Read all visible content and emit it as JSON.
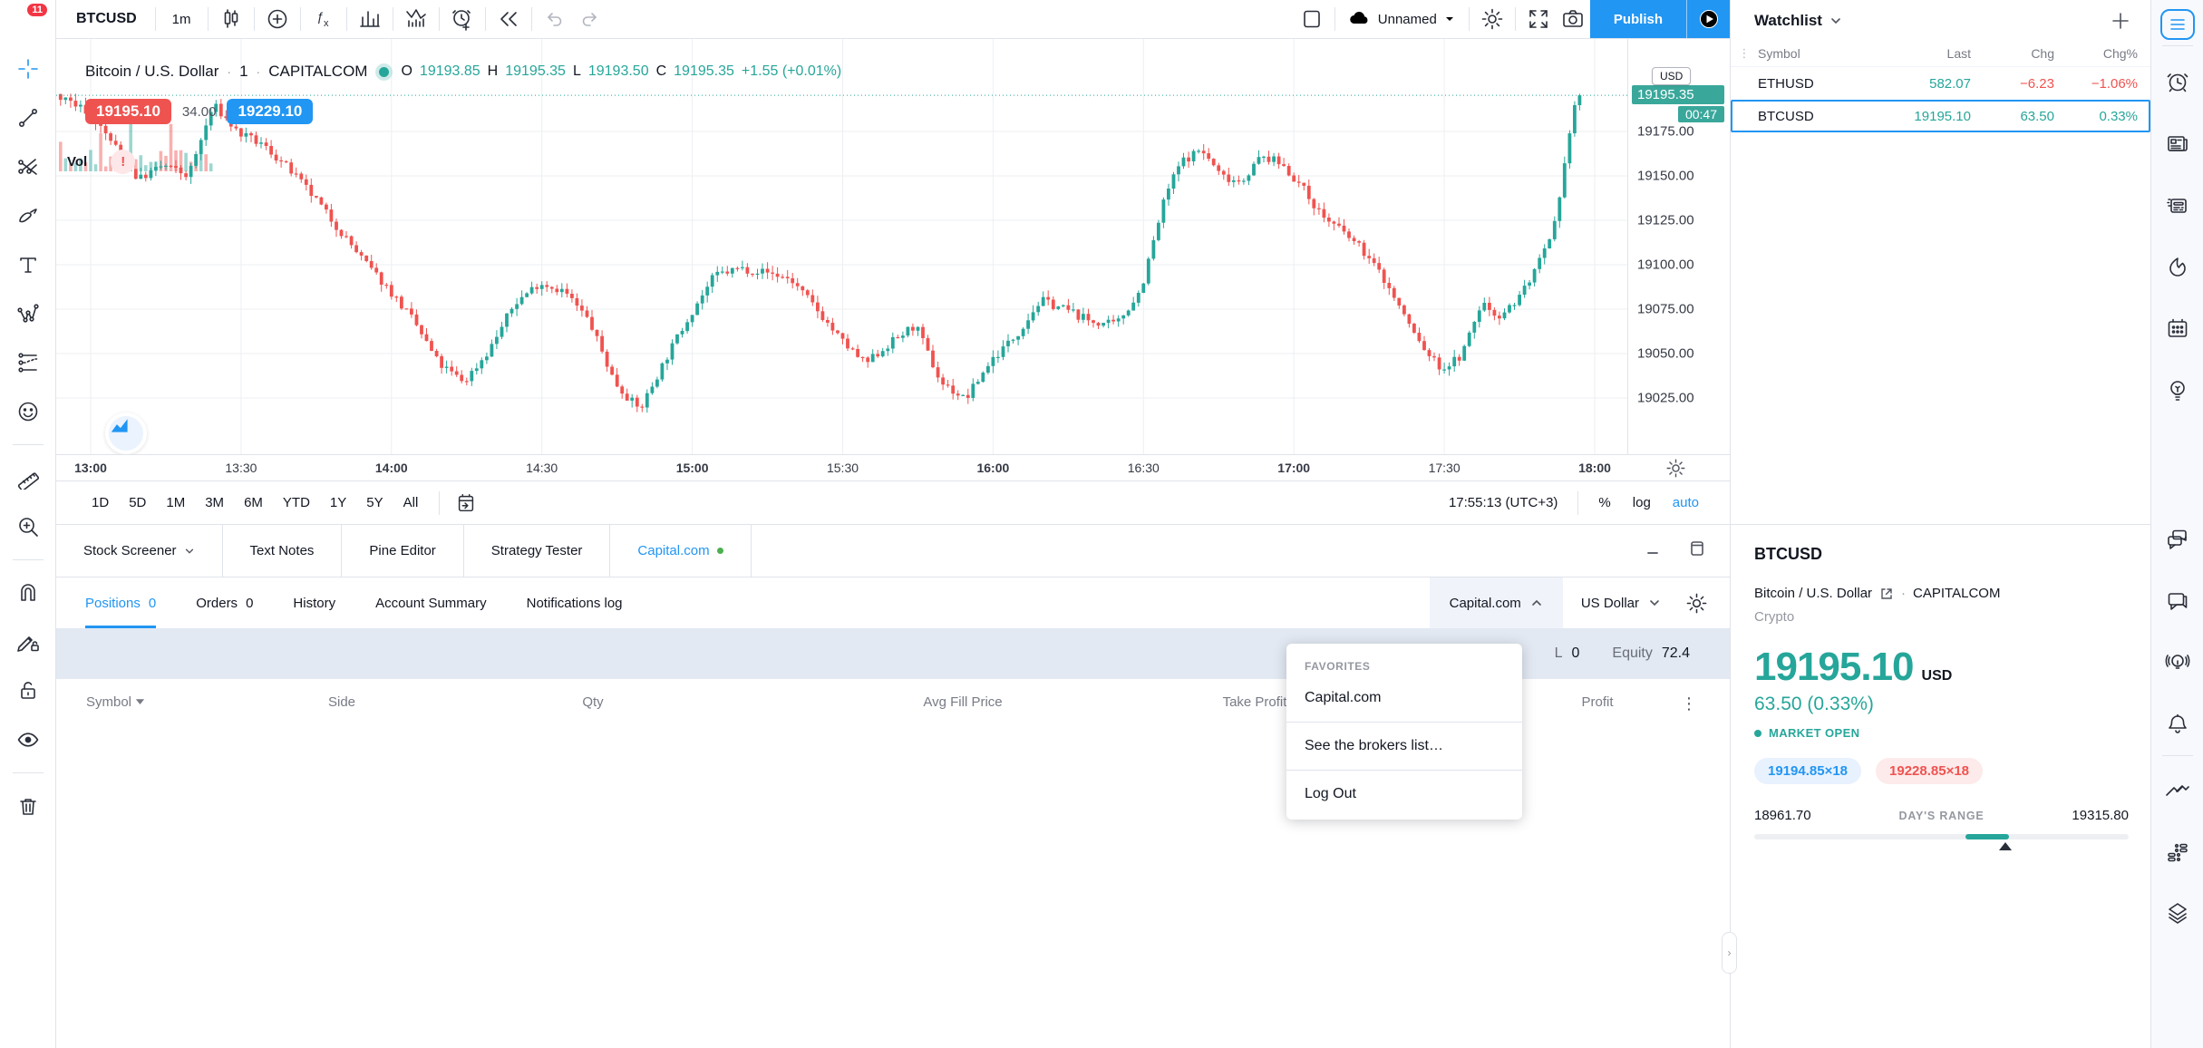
{
  "topbar": {
    "menu_badge": "11",
    "symbol": "BTCUSD",
    "interval": "1m",
    "save_label": "Unnamed",
    "publish_label": "Publish"
  },
  "legend": {
    "title": "Bitcoin / U.S. Dollar",
    "interval": "1",
    "exchange": "CAPITALCOM",
    "o_label": "O",
    "o_value": "19193.85",
    "h_label": "H",
    "h_value": "19195.35",
    "l_label": "L",
    "l_value": "19193.50",
    "c_label": "C",
    "c_value": "19195.35",
    "change": "+1.55 (+0.01%)"
  },
  "order_panel": {
    "sell_price": "19195.10",
    "spread": "34.00",
    "buy_price": "19229.10"
  },
  "indicators": {
    "volume_label": "Vol"
  },
  "price_axis": {
    "currency_badge": "USD",
    "current_price_label": "19195.35",
    "countdown": "00:47",
    "ticks": [
      "19175.00",
      "19150.00",
      "19125.00",
      "19100.00",
      "19075.00",
      "19050.00",
      "19025.00"
    ]
  },
  "footer": {
    "ranges": [
      "1D",
      "5D",
      "1M",
      "3M",
      "6M",
      "YTD",
      "1Y",
      "5Y",
      "All"
    ],
    "clock": "17:55:13 (UTC+3)",
    "percent_label": "%",
    "log_label": "log",
    "auto_label": "auto"
  },
  "panel": {
    "tabs": [
      {
        "label": "Stock Screener",
        "caret": true,
        "active": false
      },
      {
        "label": "Text Notes",
        "caret": false,
        "active": false
      },
      {
        "label": "Pine Editor",
        "caret": false,
        "active": false
      },
      {
        "label": "Strategy Tester",
        "caret": false,
        "active": false
      },
      {
        "label": "Capital.com",
        "caret": false,
        "active": true
      }
    ],
    "subtabs": [
      {
        "label": "Positions",
        "count": "0",
        "active": true
      },
      {
        "label": "Orders",
        "count": "0",
        "active": false
      },
      {
        "label": "History",
        "count": "",
        "active": false
      },
      {
        "label": "Account Summary",
        "count": "",
        "active": false
      },
      {
        "label": "Notifications log",
        "count": "",
        "active": false
      }
    ],
    "broker_selector": "Capital.com",
    "currency_selector": "US Dollar",
    "account_bar": {
      "pl_label": "L",
      "pl_value": "0",
      "equity_label": "Equity",
      "equity_value": "72.4"
    },
    "table_headers": [
      "Symbol",
      "Side",
      "Qty",
      "Avg Fill Price",
      "Take Profit",
      "Profit"
    ],
    "broker_menu": {
      "section_label": "FAVORITES",
      "items": [
        "Capital.com",
        "See the brokers list…",
        "Log Out"
      ]
    }
  },
  "watchlist": {
    "title": "Watchlist",
    "columns": [
      "Symbol",
      "Last",
      "Chg",
      "Chg%"
    ],
    "rows": [
      {
        "symbol": "ETHUSD",
        "last": "582.07",
        "chg": "−6.23",
        "chg_pct": "−1.06%",
        "direction": "down",
        "selected": false
      },
      {
        "symbol": "BTCUSD",
        "last": "19195.10",
        "chg": "63.50",
        "chg_pct": "0.33%",
        "direction": "up",
        "selected": true
      }
    ]
  },
  "details": {
    "symbol": "BTCUSD",
    "name": "Bitcoin / U.S. Dollar",
    "exchange": "CAPITALCOM",
    "market_type": "Crypto",
    "price": "19195.10",
    "currency": "USD",
    "change": "63.50 (0.33%)",
    "status": "MARKET OPEN",
    "bid": "19194.85×18",
    "ask": "19228.85×18",
    "range_low": "18961.70",
    "range_label": "DAY'S RANGE",
    "range_high": "19315.80",
    "range_position": 0.565,
    "range_width": 0.115
  },
  "colors": {
    "up": "#26a69a",
    "down": "#ef5350",
    "accent": "#2196f3"
  },
  "chart_data": {
    "type": "candlestick",
    "title": "Bitcoin / U.S. Dollar · 1 · CAPITALCOM",
    "x_ticks": [
      "13:00",
      "13:30",
      "14:00",
      "14:30",
      "15:00",
      "15:30",
      "16:00",
      "16:30",
      "17:00",
      "17:30",
      "18:00"
    ],
    "price_gridlines": [
      19025,
      19050,
      19075,
      19100,
      19125,
      19150,
      19175
    ],
    "y_range_visible": [
      19000,
      19230
    ],
    "current_price": 19195.35,
    "last_candle": {
      "open": 19193.85,
      "high": 19195.35,
      "low": 19193.5,
      "close": 19195.35,
      "change": "+1.55 (+0.01%)"
    },
    "up_color": "#26a69a",
    "down_color": "#ef5350",
    "sampled_path_minutes_from_1300": [
      [
        -6,
        19196
      ],
      [
        0,
        19186
      ],
      [
        5,
        19168
      ],
      [
        10,
        19148
      ],
      [
        15,
        19156
      ],
      [
        20,
        19150
      ],
      [
        25,
        19190
      ],
      [
        30,
        19174
      ],
      [
        35,
        19167
      ],
      [
        40,
        19154
      ],
      [
        45,
        19138
      ],
      [
        50,
        19120
      ],
      [
        55,
        19102
      ],
      [
        60,
        19086
      ],
      [
        65,
        19068
      ],
      [
        70,
        19044
      ],
      [
        75,
        19034
      ],
      [
        80,
        19052
      ],
      [
        85,
        19078
      ],
      [
        90,
        19090
      ],
      [
        95,
        19085
      ],
      [
        100,
        19068
      ],
      [
        105,
        19034
      ],
      [
        110,
        19018
      ],
      [
        115,
        19046
      ],
      [
        120,
        19072
      ],
      [
        125,
        19094
      ],
      [
        130,
        19098
      ],
      [
        135,
        19096
      ],
      [
        140,
        19092
      ],
      [
        145,
        19076
      ],
      [
        150,
        19058
      ],
      [
        155,
        19044
      ],
      [
        160,
        19056
      ],
      [
        165,
        19066
      ],
      [
        170,
        19034
      ],
      [
        175,
        19024
      ],
      [
        180,
        19046
      ],
      [
        185,
        19060
      ],
      [
        190,
        19080
      ],
      [
        195,
        19075
      ],
      [
        200,
        19068
      ],
      [
        205,
        19066
      ],
      [
        210,
        19086
      ],
      [
        215,
        19140
      ],
      [
        218,
        19158
      ],
      [
        222,
        19165
      ],
      [
        226,
        19150
      ],
      [
        230,
        19147
      ],
      [
        234,
        19161
      ],
      [
        238,
        19157
      ],
      [
        242,
        19144
      ],
      [
        246,
        19128
      ],
      [
        250,
        19119
      ],
      [
        254,
        19109
      ],
      [
        258,
        19094
      ],
      [
        262,
        19074
      ],
      [
        266,
        19054
      ],
      [
        270,
        19041
      ],
      [
        274,
        19049
      ],
      [
        278,
        19079
      ],
      [
        281,
        19071
      ],
      [
        284,
        19077
      ],
      [
        287,
        19089
      ],
      [
        290,
        19104
      ],
      [
        292,
        19116
      ],
      [
        294,
        19142
      ],
      [
        295,
        19168
      ],
      [
        296,
        19184
      ],
      [
        297,
        19195.35
      ]
    ]
  }
}
